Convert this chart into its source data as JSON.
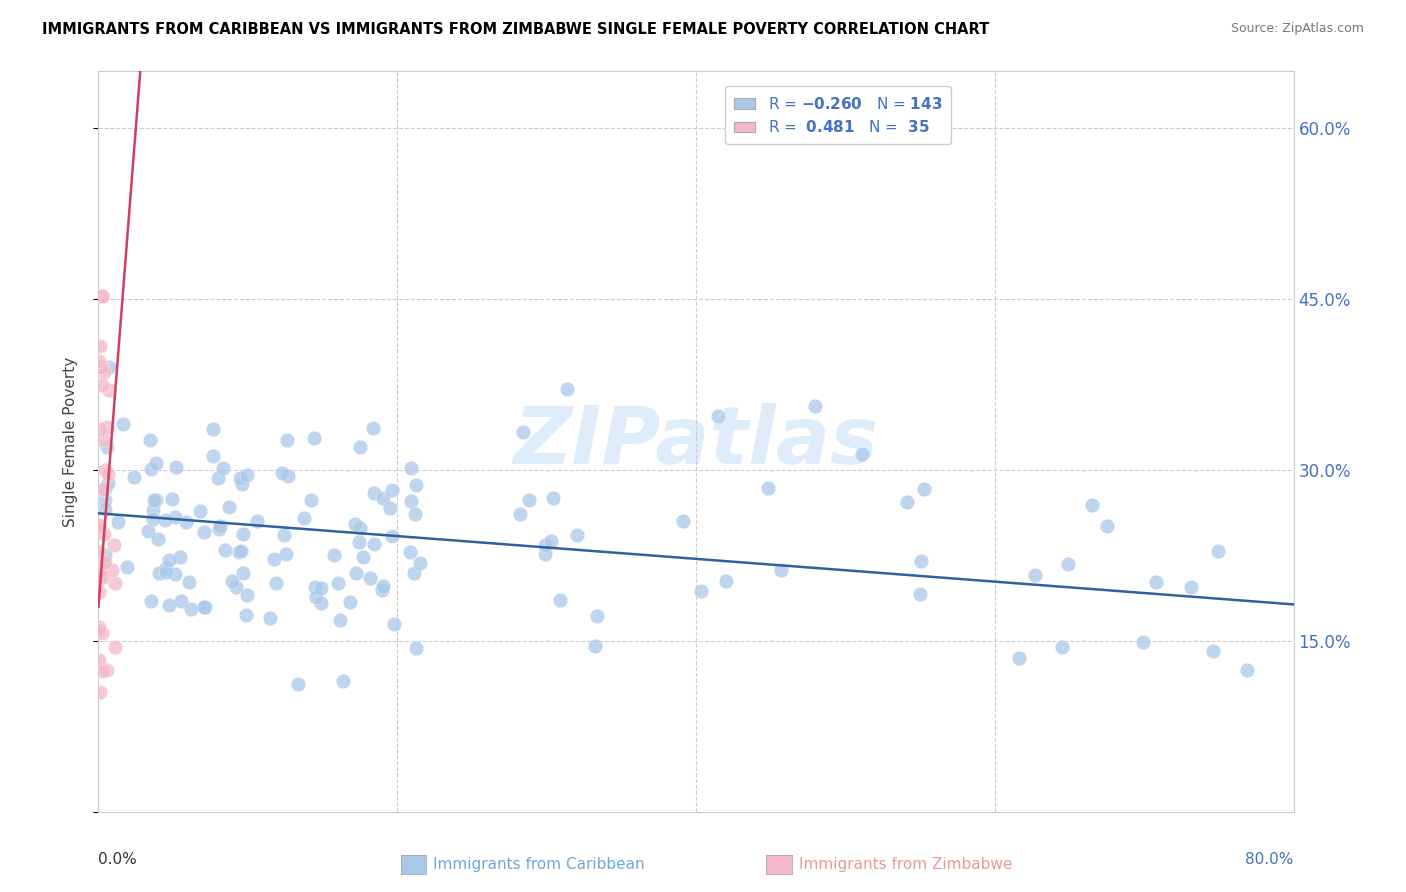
{
  "title": "IMMIGRANTS FROM CARIBBEAN VS IMMIGRANTS FROM ZIMBABWE SINGLE FEMALE POVERTY CORRELATION CHART",
  "source": "Source: ZipAtlas.com",
  "ylabel": "Single Female Poverty",
  "xlim": [
    0.0,
    0.8
  ],
  "ylim": [
    0.0,
    0.65
  ],
  "blue_color": "#a8c8e8",
  "pink_color": "#f4b8c8",
  "blue_line_color": "#3060a0",
  "pink_line_color": "#d04060",
  "blue_R": -0.26,
  "blue_N": 143,
  "pink_R": 0.481,
  "pink_N": 35,
  "label_caribbean": "Immigrants from Caribbean",
  "label_zimbabwe": "Immigrants from Zimbabwe",
  "watermark": "ZIPatlas",
  "blue_trend_x0": 0.0,
  "blue_trend_y0": 0.262,
  "blue_trend_x1": 0.8,
  "blue_trend_y1": 0.182,
  "pink_trend_x0": 0.0,
  "pink_trend_y0": 0.18,
  "pink_trend_x1": 0.028,
  "pink_trend_y1": 0.65
}
